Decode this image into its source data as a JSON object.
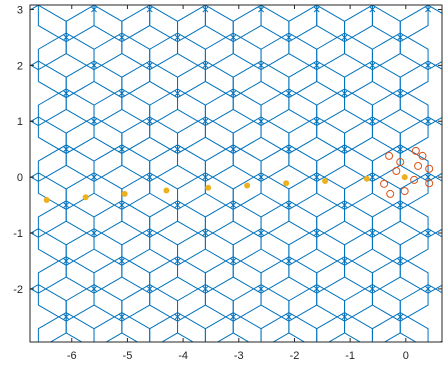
{
  "chart_data": {
    "type": "scatter",
    "title": "",
    "xlabel": "",
    "ylabel": "",
    "xlim": [
      -6.75,
      0.65
    ],
    "ylim": [
      -2.95,
      3.08
    ],
    "x_ticks": [
      -6,
      -5,
      -4,
      -3,
      -2,
      -1,
      0
    ],
    "x_tick_labels": [
      "-6",
      "-5",
      "-4",
      "-3",
      "-2",
      "-1",
      "0"
    ],
    "y_ticks": [
      -2,
      -1,
      0,
      1,
      2,
      3
    ],
    "y_tick_labels": [
      "-2",
      "-1",
      "0",
      "1",
      "2",
      "3"
    ],
    "grid": false,
    "colors": {
      "hex_edges": "#0072bd",
      "centers": "#0072bd",
      "trajectory": "#edb120",
      "ring": "#d95319",
      "axes": "#262626"
    },
    "hex_grid": {
      "cell_radius": 0.577,
      "columns_x": [
        -6.6,
        -6.1,
        -5.6,
        -5.1,
        -4.6,
        -4.1,
        -3.6,
        -3.1,
        -2.6,
        -2.1,
        -1.6,
        -1.1,
        -0.6,
        -0.1,
        0.4
      ],
      "even_rows_y": [
        -2.5,
        -1.5,
        -0.5,
        0.5,
        1.5,
        2.5
      ],
      "odd_rows_y": [
        -3.0,
        -2.0,
        -1.0,
        0.0,
        1.0,
        2.0,
        3.0
      ]
    },
    "series": [
      {
        "marker": "x",
        "x": [
          -6.1,
          -5.1,
          -4.1,
          -3.1,
          -2.1,
          -1.1,
          -0.1,
          -6.1,
          -5.1,
          -4.1,
          -3.1,
          -2.1,
          -1.1,
          -0.1,
          -6.1,
          -5.1,
          -4.1,
          -3.1,
          -2.1,
          -1.1,
          -0.1,
          -6.1,
          -5.1,
          -4.1,
          -3.1,
          -2.1,
          -1.1,
          -0.1,
          -6.1,
          -5.1,
          -4.1,
          -3.1,
          -2.1,
          -1.1,
          -0.1,
          -6.1,
          -5.1,
          -4.1,
          -3.1,
          -2.1,
          -1.1,
          -0.1,
          -5.6,
          -4.6,
          -3.6,
          -2.6,
          -1.6,
          -0.6,
          0.4,
          -5.6,
          -4.6,
          -3.6,
          -2.6,
          -1.6,
          -0.6,
          0.4,
          -5.6,
          -4.6,
          -3.6,
          -2.6,
          -1.6,
          -0.6,
          0.4,
          -5.6,
          -4.6,
          -3.6,
          -2.6,
          -1.6,
          -0.6,
          0.4,
          -5.6,
          -4.6,
          -3.6,
          -2.6,
          -1.6,
          -0.6,
          0.4,
          -5.6,
          -4.6,
          -3.6,
          -2.6,
          -1.6,
          -0.6,
          0.4,
          -5.6,
          -4.6,
          -3.6,
          -2.6,
          -1.6,
          -0.6,
          0.4
        ],
        "y": [
          2.5,
          2.5,
          2.5,
          2.5,
          2.5,
          2.5,
          2.5,
          1.5,
          1.5,
          1.5,
          1.5,
          1.5,
          1.5,
          1.5,
          0.5,
          0.5,
          0.5,
          0.5,
          0.5,
          0.5,
          0.5,
          -0.5,
          -0.5,
          -0.5,
          -0.5,
          -0.5,
          -0.5,
          -0.5,
          -1.5,
          -1.5,
          -1.5,
          -1.5,
          -1.5,
          -1.5,
          -1.5,
          -2.5,
          -2.5,
          -2.5,
          -2.5,
          -2.5,
          -2.5,
          -2.5,
          3.0,
          3.0,
          3.0,
          3.0,
          3.0,
          3.0,
          3.0,
          2.0,
          2.0,
          2.0,
          2.0,
          2.0,
          2.0,
          2.0,
          1.0,
          1.0,
          1.0,
          1.0,
          1.0,
          1.0,
          1.0,
          0.0,
          0.0,
          0.0,
          0.0,
          0.0,
          0.0,
          0.0,
          -1.0,
          -1.0,
          -1.0,
          -1.0,
          -1.0,
          -1.0,
          -1.0,
          -2.0,
          -2.0,
          -2.0,
          -2.0,
          -2.0,
          -2.0,
          -2.0,
          -3.0,
          -3.0,
          -3.0,
          -3.0,
          -3.0,
          -3.0,
          -3.0
        ]
      },
      {
        "marker": "filled-circle",
        "x": [
          -6.45,
          -5.75,
          -5.05,
          -4.3,
          -3.55,
          -2.85,
          -2.15,
          -1.45,
          -0.7,
          -0.02
        ],
        "y": [
          -0.41,
          -0.36,
          -0.3,
          -0.24,
          -0.19,
          -0.15,
          -0.11,
          -0.07,
          -0.03,
          0.0
        ]
      },
      {
        "marker": "open-circle",
        "x": [
          0.18,
          0.3,
          0.22,
          0.42,
          0.42,
          -0.3,
          -0.1,
          -0.17,
          0.15,
          -0.02,
          -0.39,
          -0.28
        ],
        "y": [
          0.47,
          0.38,
          0.2,
          0.15,
          -0.11,
          0.38,
          0.27,
          0.11,
          -0.05,
          -0.25,
          -0.12,
          -0.3
        ]
      }
    ]
  }
}
